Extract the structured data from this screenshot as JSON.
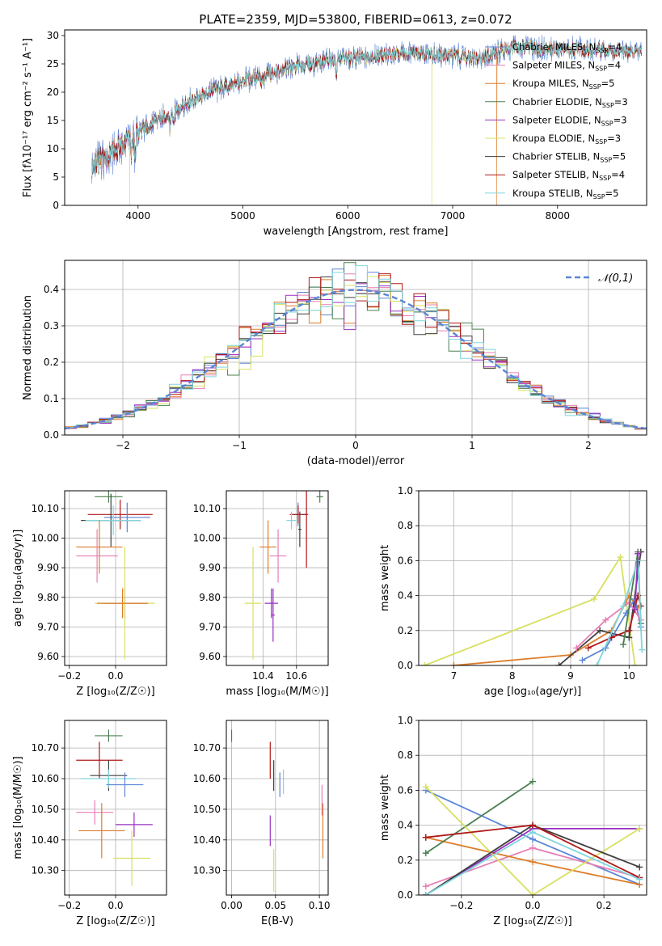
{
  "colors": {
    "Chabrier MILES": "#5b85d6",
    "Salpeter MILES": "#e87fb5",
    "Kroupa MILES": "#dd7d2a",
    "Chabrier ELODIE": "#4a8050",
    "Salpeter ELODIE": "#9a30c0",
    "Kroupa ELODIE": "#d8e060",
    "Chabrier STELIB": "#404040",
    "Salpeter STELIB": "#b01818",
    "Kroupa STELIB": "#7fd6dc"
  },
  "chart_data": [
    {
      "id": "spectrum",
      "type": "line",
      "title": "PLATE=2359, MJD=53800, FIBERID=0613, z=0.072",
      "xlabel": "wavelength [Angstrom, rest frame]",
      "ylabel": "Flux [fλ10⁻¹⁷ erg cm⁻² s⁻¹ A⁻¹]",
      "xlim": [
        3300,
        8850
      ],
      "ylim": [
        0,
        31
      ],
      "xticks": [
        4000,
        5000,
        6000,
        7000,
        8000
      ],
      "yticks": [
        0,
        5,
        10,
        15,
        20,
        25,
        30
      ],
      "grid": false,
      "legend_position": "right",
      "legend": [
        {
          "name": "Chabrier MILES",
          "nssp": "4"
        },
        {
          "name": "Salpeter MILES",
          "nssp": "4"
        },
        {
          "name": "Kroupa MILES",
          "nssp": "5"
        },
        {
          "name": "Chabrier ELODIE",
          "nssp": "3"
        },
        {
          "name": "Salpeter ELODIE",
          "nssp": "3"
        },
        {
          "name": "Kroupa ELODIE",
          "nssp": "3"
        },
        {
          "name": "Chabrier STELIB",
          "nssp": "5"
        },
        {
          "name": "Salpeter STELIB",
          "nssp": "4"
        },
        {
          "name": "Kroupa STELIB",
          "nssp": "5"
        }
      ],
      "nssp_prefix": "N",
      "nssp_sub": "SSP",
      "continuum_knots": [
        [
          3560,
          7
        ],
        [
          3700,
          8.5
        ],
        [
          3850,
          11
        ],
        [
          3950,
          12
        ],
        [
          4050,
          13.5
        ],
        [
          4200,
          15.5
        ],
        [
          4300,
          16
        ],
        [
          4500,
          18.5
        ],
        [
          4800,
          21
        ],
        [
          5000,
          22
        ],
        [
          5200,
          23
        ],
        [
          5500,
          24.5
        ],
        [
          5800,
          25.5
        ],
        [
          6000,
          26
        ],
        [
          6300,
          26.5
        ],
        [
          6600,
          27
        ],
        [
          7000,
          26.5
        ],
        [
          7300,
          26
        ],
        [
          7400,
          27
        ],
        [
          7600,
          28
        ],
        [
          8000,
          27.5
        ],
        [
          8400,
          27.5
        ],
        [
          8800,
          27
        ]
      ],
      "absorption_lines": [
        [
          3934,
          3
        ],
        [
          3969,
          3
        ],
        [
          4101,
          1.5
        ],
        [
          4304,
          2.5
        ],
        [
          4340,
          1
        ],
        [
          4861,
          1
        ],
        [
          5175,
          2
        ],
        [
          5270,
          1
        ],
        [
          5892,
          2
        ],
        [
          6563,
          1
        ]
      ],
      "chip_gaps": [
        {
          "series": "Kroupa ELODIE",
          "x": 3920
        },
        {
          "series": "Kroupa ELODIE",
          "x": 6800
        },
        {
          "series": "Kroupa MILES",
          "x": 7420
        }
      ]
    },
    {
      "id": "residuals",
      "type": "histogram",
      "xlabel": "(data-model)/error",
      "ylabel": "Normed distribution",
      "xlim": [
        -2.5,
        2.5
      ],
      "ylim": [
        0,
        0.48
      ],
      "xticks": [
        -2,
        -1,
        0,
        1,
        2
      ],
      "yticks": [
        0.0,
        0.1,
        0.2,
        0.3,
        0.4
      ],
      "grid": true,
      "bin_width": 0.1,
      "reference_curve": {
        "name": "𝒩(0,1)",
        "style": "dashed",
        "color": "#5b85d6"
      },
      "legend_position": "top-right",
      "series_noise": [
        {
          "name": "Chabrier MILES",
          "seed": 1
        },
        {
          "name": "Salpeter MILES",
          "seed": 2
        },
        {
          "name": "Kroupa MILES",
          "seed": 3
        },
        {
          "name": "Chabrier ELODIE",
          "seed": 4
        },
        {
          "name": "Salpeter ELODIE",
          "seed": 5
        },
        {
          "name": "Kroupa ELODIE",
          "seed": 6
        },
        {
          "name": "Chabrier STELIB",
          "seed": 7
        },
        {
          "name": "Salpeter STELIB",
          "seed": 8
        },
        {
          "name": "Kroupa STELIB",
          "seed": 9
        }
      ]
    },
    {
      "id": "age-vs-Z",
      "type": "errorbar",
      "xlabel": "Z [log₁₀(Z/Z☉)]",
      "ylabel": "age  [log₁₀(age/yr)]",
      "xlim": [
        -0.22,
        0.22
      ],
      "ylim": [
        9.57,
        10.16
      ],
      "xticks": [
        -0.2,
        0.0
      ],
      "yticks": [
        9.6,
        9.7,
        9.8,
        9.9,
        10.0,
        10.1
      ],
      "grid": true,
      "points": [
        {
          "series": "Chabrier ELODIE",
          "x": -0.03,
          "y": 10.14,
          "xerr": 0.06,
          "yerr": 0.02
        },
        {
          "series": "Salpeter STELIB",
          "x": 0.02,
          "y": 10.08,
          "xerr": 0.14,
          "yerr": 0.05
        },
        {
          "series": "Chabrier MILES",
          "x": 0.05,
          "y": 10.07,
          "xerr": 0.1,
          "yerr": 0.05
        },
        {
          "series": "Chabrier STELIB",
          "x": -0.02,
          "y": 10.06,
          "xerr": 0.13,
          "yerr": 0.09
        },
        {
          "series": "Kroupa STELIB",
          "x": -0.01,
          "y": 10.06,
          "xerr": 0.12,
          "yerr": 0.05
        },
        {
          "series": "Kroupa MILES",
          "x": -0.07,
          "y": 9.97,
          "xerr": 0.1,
          "yerr": 0.09
        },
        {
          "series": "Salpeter MILES",
          "x": -0.08,
          "y": 9.94,
          "xerr": 0.09,
          "yerr": 0.09
        },
        {
          "series": "Salpeter ELODIE",
          "x": 0.04,
          "y": 9.78,
          "xerr": 0.09,
          "yerr": 0.05
        },
        {
          "series": "Kroupa ELODIE",
          "x": 0.04,
          "y": 9.78,
          "xerr": 0.13,
          "yerr": 0.19
        },
        {
          "series": "Kroupa MILES",
          "x": 0.03,
          "y": 9.78,
          "xerr": 0.11,
          "yerr": 0.05
        }
      ]
    },
    {
      "id": "age-vs-mass",
      "type": "errorbar",
      "xlabel": "mass [log₁₀(M/M☉)]",
      "ylabel": "",
      "xlim": [
        10.18,
        10.79
      ],
      "ylim": [
        9.57,
        10.16
      ],
      "xticks": [
        10.4,
        10.6
      ],
      "yticks": [
        9.6,
        9.7,
        9.8,
        9.9,
        10.0,
        10.1
      ],
      "grid": true,
      "points": [
        {
          "series": "Chabrier ELODIE",
          "x": 10.74,
          "y": 10.14,
          "xerr": 0.02,
          "yerr": 0.02
        },
        {
          "series": "Chabrier MILES",
          "x": 10.61,
          "y": 10.08,
          "xerr": 0.04,
          "yerr": 0.04
        },
        {
          "series": "Salpeter STELIB",
          "x": 10.61,
          "y": 10.08,
          "xerr": 0.05,
          "yerr": 0.03
        },
        {
          "series": "Kroupa STELIB",
          "x": 10.57,
          "y": 10.06,
          "xerr": 0.03,
          "yerr": 0.03
        },
        {
          "series": "Salpeter STELIB",
          "x": 10.66,
          "y": 10.08,
          "xerr": 0.01,
          "yerr": 0.18
        },
        {
          "series": "Chabrier STELIB",
          "x": 10.62,
          "y": 10.03,
          "xerr": 0.01,
          "yerr": 0.06
        },
        {
          "series": "Kroupa MILES",
          "x": 10.43,
          "y": 9.97,
          "xerr": 0.05,
          "yerr": 0.09
        },
        {
          "series": "Salpeter MILES",
          "x": 10.49,
          "y": 9.94,
          "xerr": 0.05,
          "yerr": 0.09
        },
        {
          "series": "Kroupa ELODIE",
          "x": 10.34,
          "y": 9.78,
          "xerr": 0.05,
          "yerr": 0.19
        },
        {
          "series": "Salpeter ELODIE",
          "x": 10.45,
          "y": 9.78,
          "xerr": 0.04,
          "yerr": 0.05
        },
        {
          "series": "Salpeter ELODIE",
          "x": 10.46,
          "y": 9.74,
          "xerr": 0.01,
          "yerr": 0.09
        }
      ]
    },
    {
      "id": "massweight-vs-age",
      "type": "line",
      "xlabel": "age  [log₁₀(age/yr)]",
      "ylabel": "mass weight",
      "xlim": [
        6.4,
        10.3
      ],
      "ylim": [
        0,
        1
      ],
      "xticks": [
        7,
        8,
        9,
        10
      ],
      "yticks": [
        0.0,
        0.2,
        0.4,
        0.6,
        0.8,
        1.0
      ],
      "grid": true,
      "series": [
        {
          "name": "Kroupa ELODIE",
          "x": [
            6.5,
            9.4,
            9.85,
            10.1
          ],
          "y": [
            0.0,
            0.38,
            0.62,
            0.0
          ]
        },
        {
          "name": "Kroupa MILES",
          "x": [
            7.0,
            9.0,
            9.7,
            10.0,
            10.15
          ],
          "y": [
            0.0,
            0.06,
            0.2,
            0.4,
            0.33
          ]
        },
        {
          "name": "Chabrier STELIB",
          "x": [
            8.8,
            9.5,
            10.0,
            10.2
          ],
          "y": [
            0.0,
            0.2,
            0.16,
            0.65
          ]
        },
        {
          "name": "Chabrier MILES",
          "x": [
            9.2,
            9.6,
            9.95,
            10.1,
            10.2
          ],
          "y": [
            0.03,
            0.1,
            0.3,
            0.38,
            0.22
          ]
        },
        {
          "name": "Salpeter MILES",
          "x": [
            9.1,
            9.6,
            10.0,
            10.2
          ],
          "y": [
            0.1,
            0.26,
            0.36,
            0.26
          ]
        },
        {
          "name": "Salpeter STELIB",
          "x": [
            9.3,
            9.7,
            10.0,
            10.15,
            10.2
          ],
          "y": [
            0.1,
            0.16,
            0.2,
            0.4,
            0.34
          ]
        },
        {
          "name": "Chabrier ELODIE",
          "x": [
            9.9,
            10.15,
            10.2
          ],
          "y": [
            0.12,
            0.65,
            0.24
          ]
        },
        {
          "name": "Kroupa STELIB",
          "x": [
            9.45,
            9.9,
            10.15,
            10.22
          ],
          "y": [
            0.0,
            0.34,
            0.6,
            0.09
          ]
        },
        {
          "name": "Salpeter ELODIE",
          "x": [
            10.1,
            10.15
          ],
          "y": [
            0.32,
            0.64
          ]
        }
      ]
    },
    {
      "id": "mass-vs-Z",
      "type": "errorbar",
      "xlabel": "Z [log₁₀(Z/Z☉)]",
      "ylabel": "mass [log₁₀(M/M☉)]",
      "xlim": [
        -0.22,
        0.22
      ],
      "ylim": [
        10.22,
        10.79
      ],
      "xticks": [
        -0.2,
        0.0
      ],
      "yticks": [
        10.3,
        10.4,
        10.5,
        10.6,
        10.7
      ],
      "grid": true,
      "points": [
        {
          "series": "Chabrier ELODIE",
          "x": -0.03,
          "y": 10.74,
          "xerr": 0.06,
          "yerr": 0.02
        },
        {
          "series": "Salpeter STELIB",
          "x": -0.07,
          "y": 10.66,
          "xerr": 0.1,
          "yerr": 0.06
        },
        {
          "series": "Chabrier STELIB",
          "x": -0.03,
          "y": 10.61,
          "xerr": 0.08,
          "yerr": 0.05
        },
        {
          "series": "Kroupa STELIB",
          "x": -0.03,
          "y": 10.6,
          "xerr": 0.12,
          "yerr": 0.03
        },
        {
          "series": "Chabrier MILES",
          "x": 0.04,
          "y": 10.58,
          "xerr": 0.08,
          "yerr": 0.04
        },
        {
          "series": "Salpeter MILES",
          "x": -0.09,
          "y": 10.49,
          "xerr": 0.08,
          "yerr": 0.04
        },
        {
          "series": "Salpeter ELODIE",
          "x": 0.08,
          "y": 10.45,
          "xerr": 0.08,
          "yerr": 0.04
        },
        {
          "series": "Kroupa MILES",
          "x": -0.06,
          "y": 10.43,
          "xerr": 0.1,
          "yerr": 0.09
        },
        {
          "series": "Kroupa ELODIE",
          "x": 0.07,
          "y": 10.34,
          "xerr": 0.08,
          "yerr": 0.09
        }
      ]
    },
    {
      "id": "mass-vs-ebv",
      "type": "errorbar",
      "xlabel": "E(B-V)",
      "ylabel": "",
      "xlim": [
        -0.006,
        0.11
      ],
      "ylim": [
        10.22,
        10.79
      ],
      "xticks": [
        0.0,
        0.05,
        0.1
      ],
      "yticks": [
        10.3,
        10.4,
        10.5,
        10.6,
        10.7
      ],
      "grid": true,
      "points": [
        {
          "series": "Chabrier ELODIE",
          "x": 0.0,
          "y": 10.74,
          "xerr": 0.0,
          "yerr": 0.02
        },
        {
          "series": "Salpeter STELIB",
          "x": 0.044,
          "y": 10.66,
          "xerr": 0.0,
          "yerr": 0.06
        },
        {
          "series": "Chabrier STELIB",
          "x": 0.048,
          "y": 10.61,
          "xerr": 0.0,
          "yerr": 0.05
        },
        {
          "series": "Kroupa STELIB",
          "x": 0.059,
          "y": 10.59,
          "xerr": 0.0,
          "yerr": 0.04
        },
        {
          "series": "Chabrier MILES",
          "x": 0.055,
          "y": 10.58,
          "xerr": 0.0,
          "yerr": 0.04
        },
        {
          "series": "Salpeter MILES",
          "x": 0.103,
          "y": 10.53,
          "xerr": 0.0,
          "yerr": 0.05
        },
        {
          "series": "Salpeter ELODIE",
          "x": 0.044,
          "y": 10.43,
          "xerr": 0.0,
          "yerr": 0.05
        },
        {
          "series": "Kroupa MILES",
          "x": 0.104,
          "y": 10.43,
          "xerr": 0.0,
          "yerr": 0.09
        },
        {
          "series": "Kroupa ELODIE",
          "x": 0.048,
          "y": 10.3,
          "xerr": 0.0,
          "yerr": 0.07
        }
      ]
    },
    {
      "id": "massweight-vs-Z",
      "type": "line",
      "xlabel": "Z [log₁₀(Z/Z☉)]",
      "ylabel": "mass weight",
      "xlim": [
        -0.32,
        0.32
      ],
      "ylim": [
        0,
        1
      ],
      "xticks": [
        -0.2,
        0.0,
        0.2
      ],
      "yticks": [
        0.0,
        0.2,
        0.4,
        0.6,
        0.8,
        1.0
      ],
      "grid": true,
      "series": [
        {
          "name": "Chabrier MILES",
          "x": [
            -0.3,
            0.0,
            0.3
          ],
          "y": [
            0.6,
            0.32,
            0.06
          ]
        },
        {
          "name": "Salpeter MILES",
          "x": [
            -0.3,
            0.0,
            0.3
          ],
          "y": [
            0.05,
            0.27,
            0.1
          ]
        },
        {
          "name": "Kroupa MILES",
          "x": [
            -0.3,
            0.0,
            0.3
          ],
          "y": [
            0.33,
            0.19,
            0.06
          ]
        },
        {
          "name": "Chabrier ELODIE",
          "x": [
            -0.3,
            0.0
          ],
          "y": [
            0.24,
            0.65
          ]
        },
        {
          "name": "Salpeter ELODIE",
          "x": [
            -0.3,
            0.0,
            0.3
          ],
          "y": [
            0.0,
            0.38,
            0.38
          ]
        },
        {
          "name": "Kroupa ELODIE",
          "x": [
            -0.3,
            0.0,
            0.3
          ],
          "y": [
            0.62,
            0.0,
            0.38
          ]
        },
        {
          "name": "Chabrier STELIB",
          "x": [
            -0.3,
            0.0,
            0.3
          ],
          "y": [
            0.0,
            0.4,
            0.16
          ]
        },
        {
          "name": "Salpeter STELIB",
          "x": [
            -0.3,
            0.0,
            0.3
          ],
          "y": [
            0.33,
            0.4,
            0.1
          ]
        },
        {
          "name": "Kroupa STELIB",
          "x": [
            -0.3,
            0.0,
            0.3
          ],
          "y": [
            0.0,
            0.36,
            0.09
          ]
        }
      ]
    }
  ]
}
